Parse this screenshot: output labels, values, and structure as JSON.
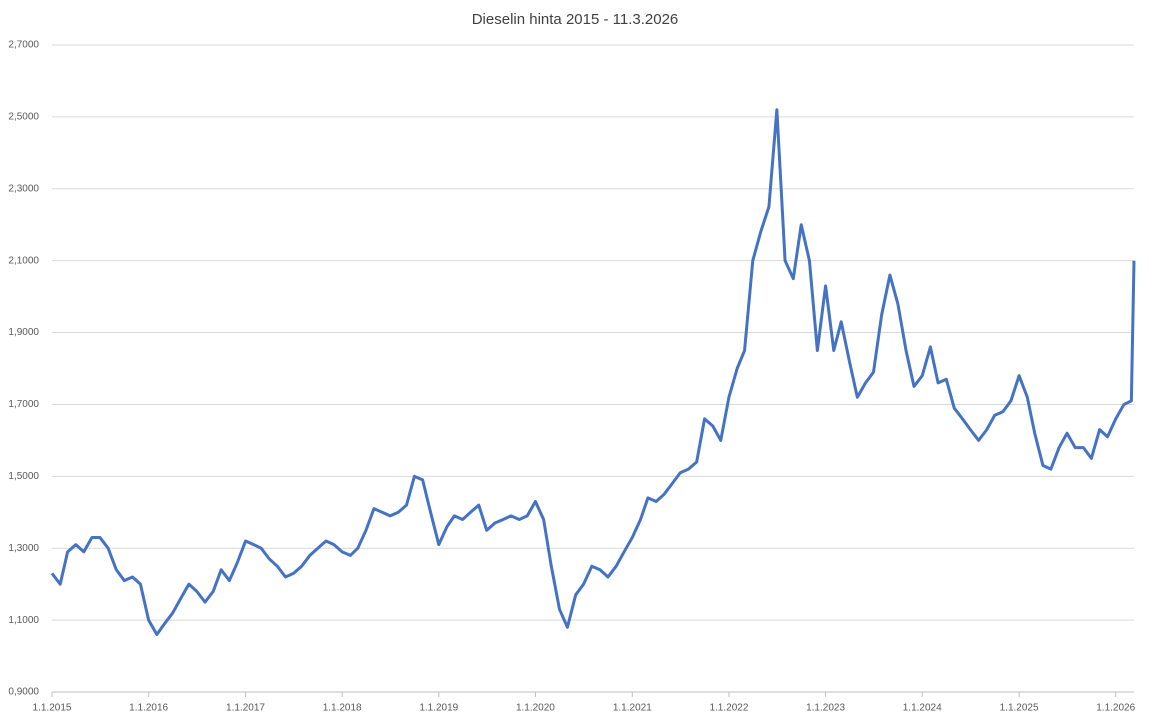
{
  "chart_data": {
    "type": "line",
    "title": "Dieselin hinta 2015 - 11.3.2026",
    "x": [
      "1.1.2015",
      "1.2.2015",
      "1.3.2015",
      "1.4.2015",
      "1.5.2015",
      "1.6.2015",
      "1.7.2015",
      "1.8.2015",
      "1.9.2015",
      "1.10.2015",
      "1.11.2015",
      "1.12.2015",
      "1.1.2016",
      "1.2.2016",
      "1.3.2016",
      "1.4.2016",
      "1.5.2016",
      "1.6.2016",
      "1.7.2016",
      "1.8.2016",
      "1.9.2016",
      "1.10.2016",
      "1.11.2016",
      "1.12.2016",
      "1.1.2017",
      "1.2.2017",
      "1.3.2017",
      "1.4.2017",
      "1.5.2017",
      "1.6.2017",
      "1.7.2017",
      "1.8.2017",
      "1.9.2017",
      "1.10.2017",
      "1.11.2017",
      "1.12.2017",
      "1.1.2018",
      "1.2.2018",
      "1.3.2018",
      "1.4.2018",
      "1.5.2018",
      "1.6.2018",
      "1.7.2018",
      "1.8.2018",
      "1.9.2018",
      "1.10.2018",
      "1.11.2018",
      "1.12.2018",
      "1.1.2019",
      "1.2.2019",
      "1.3.2019",
      "1.4.2019",
      "1.5.2019",
      "1.6.2019",
      "1.7.2019",
      "1.8.2019",
      "1.9.2019",
      "1.10.2019",
      "1.11.2019",
      "1.12.2019",
      "1.1.2020",
      "1.2.2020",
      "1.3.2020",
      "1.4.2020",
      "1.5.2020",
      "1.6.2020",
      "1.7.2020",
      "1.8.2020",
      "1.9.2020",
      "1.10.2020",
      "1.11.2020",
      "1.12.2020",
      "1.1.2021",
      "1.2.2021",
      "1.3.2021",
      "1.4.2021",
      "1.5.2021",
      "1.6.2021",
      "1.7.2021",
      "1.8.2021",
      "1.9.2021",
      "1.10.2021",
      "1.11.2021",
      "1.12.2021",
      "1.1.2022",
      "1.2.2022",
      "1.3.2022",
      "1.4.2022",
      "1.5.2022",
      "1.6.2022",
      "1.7.2022",
      "1.8.2022",
      "1.9.2022",
      "1.10.2022",
      "1.11.2022",
      "1.12.2022",
      "1.1.2023",
      "1.2.2023",
      "1.3.2023",
      "1.4.2023",
      "1.5.2023",
      "1.6.2023",
      "1.7.2023",
      "1.8.2023",
      "1.9.2023",
      "1.10.2023",
      "1.11.2023",
      "1.12.2023",
      "1.1.2024",
      "1.2.2024",
      "1.3.2024",
      "1.4.2024",
      "1.5.2024",
      "1.6.2024",
      "1.7.2024",
      "1.8.2024",
      "1.9.2024",
      "1.10.2024",
      "1.11.2024",
      "1.12.2024",
      "1.1.2025",
      "1.2.2025",
      "1.3.2025",
      "1.4.2025",
      "1.5.2025",
      "1.6.2025",
      "1.7.2025",
      "1.8.2025",
      "1.9.2025",
      "1.10.2025",
      "1.11.2025",
      "1.12.2025",
      "1.1.2026",
      "1.2.2026",
      "1.3.2026",
      "11.3.2026"
    ],
    "series": [
      {
        "color": "#4472c4",
        "values": [
          1.23,
          1.2,
          1.29,
          1.31,
          1.29,
          1.33,
          1.33,
          1.3,
          1.24,
          1.21,
          1.22,
          1.2,
          1.1,
          1.06,
          1.09,
          1.12,
          1.16,
          1.2,
          1.18,
          1.15,
          1.18,
          1.24,
          1.21,
          1.26,
          1.32,
          1.31,
          1.3,
          1.27,
          1.25,
          1.22,
          1.23,
          1.25,
          1.28,
          1.3,
          1.32,
          1.31,
          1.29,
          1.28,
          1.3,
          1.35,
          1.41,
          1.4,
          1.39,
          1.4,
          1.42,
          1.5,
          1.49,
          1.4,
          1.31,
          1.36,
          1.39,
          1.38,
          1.4,
          1.42,
          1.35,
          1.37,
          1.38,
          1.39,
          1.38,
          1.39,
          1.43,
          1.38,
          1.25,
          1.13,
          1.08,
          1.17,
          1.2,
          1.25,
          1.24,
          1.22,
          1.25,
          1.29,
          1.33,
          1.38,
          1.44,
          1.43,
          1.45,
          1.48,
          1.51,
          1.52,
          1.54,
          1.66,
          1.64,
          1.6,
          1.72,
          1.8,
          1.85,
          2.1,
          2.18,
          2.25,
          2.52,
          2.1,
          2.05,
          2.2,
          2.1,
          1.85,
          2.03,
          1.85,
          1.93,
          1.82,
          1.72,
          1.76,
          1.79,
          1.95,
          2.06,
          1.98,
          1.85,
          1.75,
          1.78,
          1.86,
          1.76,
          1.77,
          1.69,
          1.66,
          1.63,
          1.6,
          1.63,
          1.67,
          1.68,
          1.71,
          1.78,
          1.72,
          1.62,
          1.53,
          1.52,
          1.58,
          1.62,
          1.58,
          1.58,
          1.55,
          1.63,
          1.61,
          1.66,
          1.7,
          1.71,
          2.1
        ]
      }
    ],
    "xlim": [
      "1.1.2015",
      "11.3.2026"
    ],
    "xticks": [
      "1.1.2015",
      "1.1.2016",
      "1.1.2017",
      "1.1.2018",
      "1.1.2019",
      "1.1.2020",
      "1.1.2021",
      "1.1.2022",
      "1.1.2023",
      "1.1.2024",
      "1.1.2025",
      "1.1.2026"
    ],
    "ylim": [
      0.9,
      2.7
    ],
    "yticks": [
      {
        "value": 0.9,
        "label": "0,9000"
      },
      {
        "value": 1.1,
        "label": "1,1000"
      },
      {
        "value": 1.3,
        "label": "1,3000"
      },
      {
        "value": 1.5,
        "label": "1,5000"
      },
      {
        "value": 1.7,
        "label": "1,7000"
      },
      {
        "value": 1.9,
        "label": "1,9000"
      },
      {
        "value": 2.1,
        "label": "2,1000"
      },
      {
        "value": 2.3,
        "label": "2,3000"
      },
      {
        "value": 2.5,
        "label": "2,5000"
      },
      {
        "value": 2.7,
        "label": "2,7000"
      }
    ],
    "grid": true
  }
}
